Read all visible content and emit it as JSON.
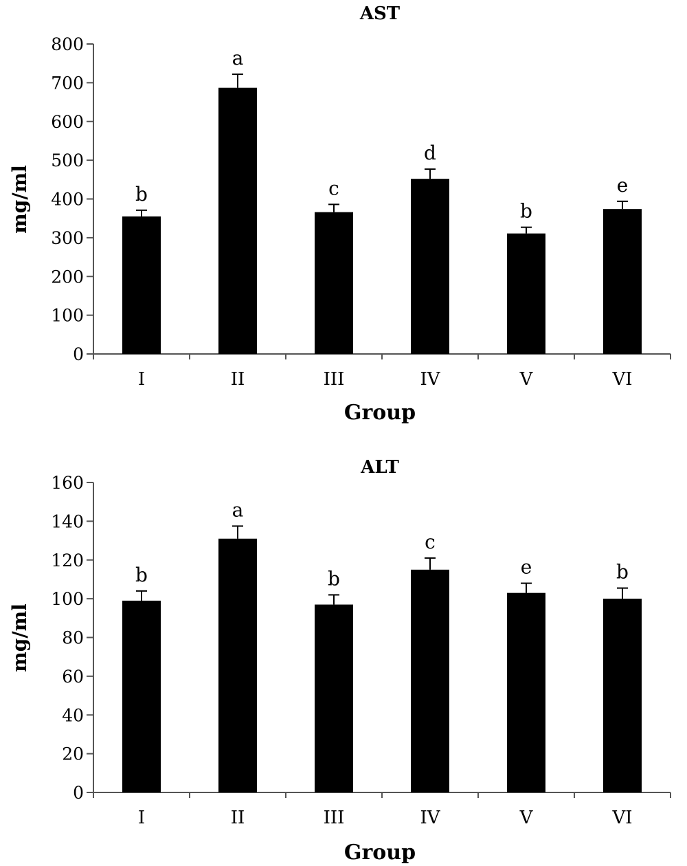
{
  "chart_data": [
    {
      "type": "bar",
      "title": "AST",
      "xlabel": "Group",
      "ylabel": "mg/ml",
      "ylim": [
        0,
        800
      ],
      "yticks": [
        0,
        100,
        200,
        300,
        400,
        500,
        600,
        700,
        800
      ],
      "categories": [
        "I",
        "II",
        "III",
        "IV",
        "V",
        "VI"
      ],
      "values": [
        355,
        687,
        366,
        452,
        311,
        374
      ],
      "errors": [
        16,
        35,
        20,
        25,
        16,
        20
      ],
      "labels": [
        "b",
        "a",
        "c",
        "d",
        "b",
        "e"
      ],
      "grid": false,
      "bar_color": "#000000"
    },
    {
      "type": "bar",
      "title": "ALT",
      "xlabel": "Group",
      "ylabel": "mg/ml",
      "ylim": [
        0,
        160
      ],
      "yticks": [
        0,
        20,
        40,
        60,
        80,
        100,
        120,
        140,
        160
      ],
      "categories": [
        "I",
        "II",
        "III",
        "IV",
        "V",
        "VI"
      ],
      "values": [
        99,
        131,
        97,
        115,
        103,
        100
      ],
      "errors": [
        5,
        6.5,
        5,
        6,
        5,
        5.5
      ],
      "labels": [
        "b",
        "a",
        "b",
        "c",
        "e",
        "b"
      ],
      "grid": false,
      "bar_color": "#000000"
    }
  ]
}
